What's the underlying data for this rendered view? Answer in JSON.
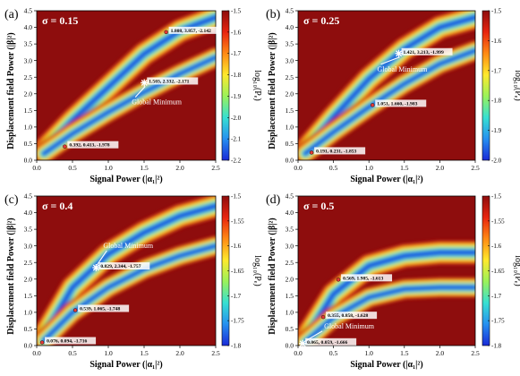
{
  "chart_data": [
    {
      "type": "heatmap",
      "panel_label": "(a)",
      "title": "σ = 0.15",
      "xlabel": "Signal Power (|α₁|²)",
      "ylabel": "Displacement field  Power (|β|²)",
      "colorbar_label": "log₁₀(Pₑ)",
      "xlim": [
        0,
        2.5
      ],
      "ylim": [
        0,
        4.5
      ],
      "xticks": [
        "0.0",
        "0.5",
        "1.0",
        "1.5",
        "2.0",
        "2.5"
      ],
      "yticks": [
        "0.0",
        "0.5",
        "1.0",
        "1.5",
        "2.0",
        "2.5",
        "3.0",
        "3.5",
        "4.0",
        "4.5"
      ],
      "colorbar_range": [
        -2.2,
        -1.5
      ],
      "colorbar_ticks": [
        "-1.5",
        "-1.6",
        "-1.7",
        "-1.8",
        "-1.9",
        "-2.0",
        "-2.1",
        "-2.2"
      ],
      "points": [
        {
          "x": 1.808,
          "y": 3.857,
          "label": "1.808, 3.857, -2.142",
          "color": "#e53935"
        },
        {
          "x": 1.503,
          "y": 2.332,
          "label": "1.503, 2.332, -2.171",
          "color": "#ffffff"
        },
        {
          "x": 0.392,
          "y": 0.413,
          "label": "0.392, 0.413, -1.978",
          "color": "#e53935"
        }
      ],
      "annotation": "Global Minimum",
      "ridges": [
        {
          "x": [
            0.1,
            0.5,
            1.0,
            1.5,
            2.0,
            2.5
          ],
          "y": [
            0.3,
            1.2,
            2.2,
            3.2,
            3.9,
            4.3
          ]
        },
        {
          "x": [
            0.1,
            0.5,
            1.0,
            1.5,
            2.0,
            2.5
          ],
          "y": [
            0.2,
            0.8,
            1.45,
            2.05,
            2.6,
            3.1
          ]
        }
      ]
    },
    {
      "type": "heatmap",
      "panel_label": "(b)",
      "title": "σ = 0.25",
      "xlabel": "Signal Power (|α₁|²)",
      "ylabel": "Displacement field  Power (|β|²)",
      "colorbar_label": "log₁₀(Pₑ)",
      "xlim": [
        0,
        2.5
      ],
      "ylim": [
        0,
        4.5
      ],
      "xticks": [
        "0.0",
        "0.5",
        "1.0",
        "1.5",
        "2.0",
        "2.5"
      ],
      "yticks": [
        "0.0",
        "0.5",
        "1.0",
        "1.5",
        "2.0",
        "2.5",
        "3.0",
        "3.5",
        "4.0",
        "4.5"
      ],
      "colorbar_range": [
        -2.0,
        -1.5
      ],
      "colorbar_ticks": [
        "-1.5",
        "-1.6",
        "-1.7",
        "-1.8",
        "-1.9",
        "-2.0"
      ],
      "points": [
        {
          "x": 1.421,
          "y": 3.213,
          "label": "1.421, 3.213, -1.999",
          "color": "#ffffff"
        },
        {
          "x": 1.051,
          "y": 1.66,
          "label": "1.051, 1.660, -1.983",
          "color": "#e53935"
        },
        {
          "x": 0.191,
          "y": 0.231,
          "label": "0.191, 0.231, -1.853",
          "color": "#e53935"
        }
      ],
      "annotation": "Global Minimum",
      "ridges": [
        {
          "x": [
            0.1,
            0.5,
            1.0,
            1.5,
            2.0,
            2.5
          ],
          "y": [
            0.3,
            1.3,
            2.45,
            3.35,
            4.0,
            4.3
          ]
        },
        {
          "x": [
            0.1,
            0.5,
            1.0,
            1.5,
            2.0,
            2.5
          ],
          "y": [
            0.2,
            0.85,
            1.6,
            2.3,
            2.9,
            3.3
          ]
        }
      ]
    },
    {
      "type": "heatmap",
      "panel_label": "(c)",
      "title": "σ = 0.4",
      "xlabel": "Signal Power (|α₁|²)",
      "ylabel": "Displacement field  Power (|β|²)",
      "colorbar_label": "log₁₀(Pₑ)",
      "xlim": [
        0,
        2.5
      ],
      "ylim": [
        0,
        4.5
      ],
      "xticks": [
        "0.0",
        "0.5",
        "1.0",
        "1.5",
        "2.0",
        "2.5"
      ],
      "yticks": [
        "0.0",
        "0.5",
        "1.0",
        "1.5",
        "2.0",
        "2.5",
        "3.0",
        "3.5",
        "4.0",
        "4.5"
      ],
      "colorbar_range": [
        -1.8,
        -1.5
      ],
      "colorbar_ticks": [
        "-1.5",
        "-1.55",
        "-1.6",
        "-1.65",
        "-1.7",
        "-1.75",
        "-1.8"
      ],
      "points": [
        {
          "x": 0.829,
          "y": 2.344,
          "label": "0.829, 2.344, -1.757",
          "color": "#ffffff"
        },
        {
          "x": 0.539,
          "y": 1.065,
          "label": "0.539, 1.065, -1.748",
          "color": "#e53935"
        },
        {
          "x": 0.076,
          "y": 0.094,
          "label": "0.076, 0.094, -1.716",
          "color": "#e53935"
        }
      ],
      "annotation": "Global Minimum",
      "ridges": [
        {
          "x": [
            0.1,
            0.5,
            1.0,
            1.5,
            2.0,
            2.5
          ],
          "y": [
            0.3,
            1.75,
            2.75,
            3.4,
            3.9,
            4.2
          ]
        },
        {
          "x": [
            0.1,
            0.5,
            1.0,
            1.5,
            2.0,
            2.5
          ],
          "y": [
            0.15,
            1.0,
            1.75,
            2.3,
            2.7,
            3.0
          ]
        }
      ]
    },
    {
      "type": "heatmap",
      "panel_label": "(d)",
      "title": "σ = 0.5",
      "xlabel": "Signal Power (|α₁|²)",
      "ylabel": "Displacement field  Power (|β|²)",
      "colorbar_label": "log₁₀(Pₑ)",
      "xlim": [
        0,
        2.5
      ],
      "ylim": [
        0,
        4.5
      ],
      "xticks": [
        "0.0",
        "0.5",
        "1.0",
        "1.5",
        "2.0",
        "2.5"
      ],
      "yticks": [
        "0.0",
        "0.5",
        "1.0",
        "1.5",
        "2.0",
        "2.5",
        "3.0",
        "3.5",
        "4.0",
        "4.5"
      ],
      "colorbar_range": [
        -1.8,
        -1.5
      ],
      "colorbar_ticks": [
        "-1.5",
        "-1.55",
        "-1.6",
        "-1.65",
        "-1.7",
        "-1.75",
        "-1.8"
      ],
      "points": [
        {
          "x": 0.569,
          "y": 1.985,
          "label": "0.569, 1.985, -1.613",
          "color": "#e53935"
        },
        {
          "x": 0.355,
          "y": 0.858,
          "label": "0.355, 0.858, -1.628",
          "color": "#e53935"
        },
        {
          "x": 0.065,
          "y": 0.059,
          "label": "0.065, 0.059, -1.666",
          "color": "#ffffff"
        }
      ],
      "annotation": "Global Minimum",
      "ridges": [
        {
          "x": [
            0.1,
            0.5,
            1.0,
            1.5,
            2.0,
            2.5
          ],
          "y": [
            0.2,
            1.55,
            2.4,
            2.7,
            2.8,
            2.8
          ]
        },
        {
          "x": [
            0.1,
            0.5,
            1.0,
            1.5,
            2.0,
            2.5
          ],
          "y": [
            0.1,
            0.85,
            1.45,
            1.7,
            1.75,
            1.75
          ]
        }
      ]
    }
  ]
}
